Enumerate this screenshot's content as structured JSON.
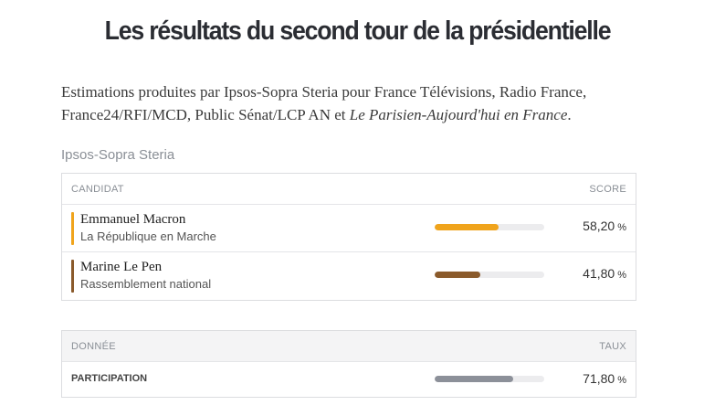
{
  "title": "Les résultats du second tour de la présidentielle",
  "intro": {
    "text_before": "Estimations produites par Ipsos-Sopra Steria pour France Télévisions, Radio France, France24/RFI/MCD, Public Sénat/LCP AN et ",
    "italic": "Le Parisien-Aujourd'hui en France",
    "text_after": "."
  },
  "source": "Ipsos-Sopra Steria",
  "results": {
    "header_left": "CANDIDAT",
    "header_right": "SCORE",
    "candidates": [
      {
        "name": "Emmanuel Macron",
        "party": "La République en Marche",
        "score": "58,20",
        "unit": "%",
        "share": 0.582,
        "color": "#f0a41c"
      },
      {
        "name": "Marine Le Pen",
        "party": "Rassemblement national",
        "score": "41,80",
        "unit": "%",
        "share": 0.418,
        "color": "#8a5a2b"
      }
    ]
  },
  "data": {
    "header_left": "DONNÉE",
    "header_right": "TAUX",
    "rows": [
      {
        "label": "PARTICIPATION",
        "value": "71,80",
        "unit": "%",
        "share": 0.718,
        "color": "#8c9099"
      }
    ]
  }
}
